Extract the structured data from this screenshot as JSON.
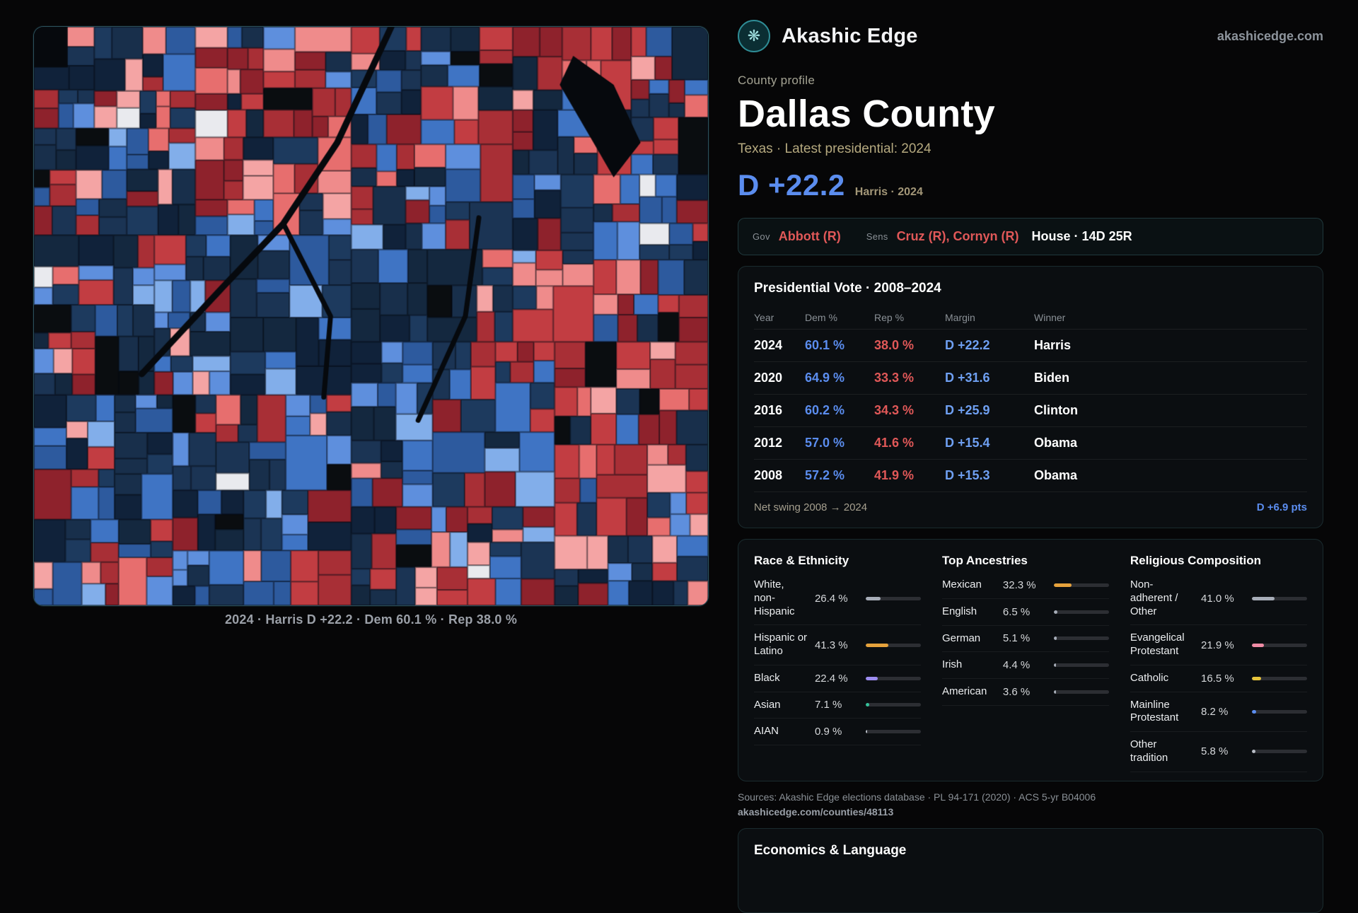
{
  "colors": {
    "dem_blue": "#5b8def",
    "dem_blue_light": "#6fa0f2",
    "rep_red": "#e05858"
  },
  "brand": {
    "name": "Akashic Edge",
    "site": "akashicedge.com"
  },
  "profile": {
    "eyebrow": "County profile",
    "title": "Dallas County",
    "subtitle": "Texas · Latest presidential: 2024",
    "margin_headline": "D +22.2",
    "margin_note": "Harris · 2024"
  },
  "officials": {
    "gov_label": "Gov",
    "gov_value": "Abbott (R)",
    "sens_label": "Sens",
    "sens_value": "Cruz (R), Cornyn (R)",
    "house_value": "House · 14D 25R"
  },
  "map": {
    "caption": "2024 · Harris D +22.2 · Dem 60.1 % · Rep 38.0 %"
  },
  "presidential": {
    "title": "Presidential Vote · 2008–2024",
    "columns": [
      "Year",
      "Dem %",
      "Rep %",
      "Margin",
      "Winner"
    ],
    "rows": [
      {
        "year": "2024",
        "dem": "60.1 %",
        "rep": "38.0 %",
        "margin": "D +22.2",
        "winner": "Harris"
      },
      {
        "year": "2020",
        "dem": "64.9 %",
        "rep": "33.3 %",
        "margin": "D +31.6",
        "winner": "Biden"
      },
      {
        "year": "2016",
        "dem": "60.2 %",
        "rep": "34.3 %",
        "margin": "D +25.9",
        "winner": "Clinton"
      },
      {
        "year": "2012",
        "dem": "57.0 %",
        "rep": "41.6 %",
        "margin": "D +15.4",
        "winner": "Obama"
      },
      {
        "year": "2008",
        "dem": "57.2 %",
        "rep": "41.9 %",
        "margin": "D +15.3",
        "winner": "Obama"
      }
    ],
    "net_swing_label": "Net swing 2008 → 2024",
    "net_swing_value": "D +6.9 pts"
  },
  "demographics": {
    "race": {
      "title": "Race & Ethnicity",
      "items": [
        {
          "label": "White, non-Hispanic",
          "value": "26.4 %",
          "pct": 26.4,
          "color": "#a7adb8"
        },
        {
          "label": "Hispanic or Latino",
          "value": "41.3 %",
          "pct": 41.3,
          "color": "#e6a23c"
        },
        {
          "label": "Black",
          "value": "22.4 %",
          "pct": 22.4,
          "color": "#9d8df1"
        },
        {
          "label": "Asian",
          "value": "7.1 %",
          "pct": 7.1,
          "color": "#35c39b"
        },
        {
          "label": "AIAN",
          "value": "0.9 %",
          "pct": 0.9,
          "color": "#b9bec6"
        }
      ]
    },
    "ancestries": {
      "title": "Top Ancestries",
      "items": [
        {
          "label": "Mexican",
          "value": "32.3 %",
          "pct": 32.3,
          "color": "#e6a23c"
        },
        {
          "label": "English",
          "value": "6.5 %",
          "pct": 6.5,
          "color": "#a7adb8"
        },
        {
          "label": "German",
          "value": "5.1 %",
          "pct": 5.1,
          "color": "#a7adb8"
        },
        {
          "label": "Irish",
          "value": "4.4 %",
          "pct": 4.4,
          "color": "#a7adb8"
        },
        {
          "label": "American",
          "value": "3.6 %",
          "pct": 3.6,
          "color": "#a7adb8"
        }
      ]
    },
    "religion": {
      "title": "Religious Composition",
      "items": [
        {
          "label": "Non-adherent / Other",
          "value": "41.0 %",
          "pct": 41.0,
          "color": "#a7adb8"
        },
        {
          "label": "Evangelical Protestant",
          "value": "21.9 %",
          "pct": 21.9,
          "color": "#f08ca6"
        },
        {
          "label": "Catholic",
          "value": "16.5 %",
          "pct": 16.5,
          "color": "#e8c53c"
        },
        {
          "label": "Mainline Protestant",
          "value": "8.2 %",
          "pct": 8.2,
          "color": "#5b8def"
        },
        {
          "label": "Other tradition",
          "value": "5.8 %",
          "pct": 5.8,
          "color": "#b9bec6"
        }
      ]
    }
  },
  "sources": {
    "line1": "Sources: Akashic Edge elections database · PL 94-171 (2020) · ACS 5-yr B04006",
    "link": "akashicedge.com/counties/48113"
  },
  "economics": {
    "title": "Economics & Language"
  }
}
